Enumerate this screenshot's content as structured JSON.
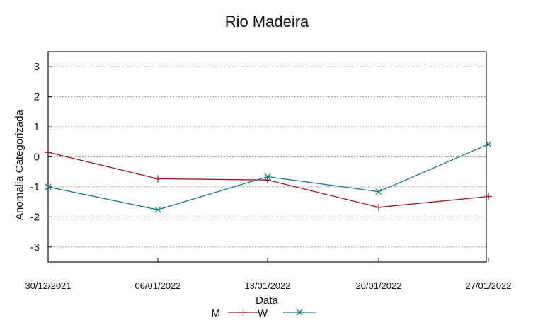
{
  "chart_data": {
    "type": "line",
    "title": "Rio Madeira",
    "xlabel": "Data",
    "ylabel": "Anomalia Categorizada",
    "categories": [
      "30/12/2021",
      "06/01/2022",
      "13/01/2022",
      "20/01/2022",
      "27/01/2022"
    ],
    "ylim": [
      -3.5,
      3.5
    ],
    "yticks": [
      3,
      2,
      1,
      0,
      -1,
      -2,
      -3
    ],
    "grid": true,
    "legend_position": "bottom-center",
    "series": [
      {
        "name": "M",
        "color": "#a0192a",
        "marker": "plus",
        "values": [
          0.15,
          -0.73,
          -0.77,
          -1.68,
          -1.32
        ]
      },
      {
        "name": "W",
        "color": "#1a7a80",
        "marker": "cross",
        "values": [
          -1.0,
          -1.76,
          -0.66,
          -1.16,
          0.42
        ]
      }
    ]
  }
}
